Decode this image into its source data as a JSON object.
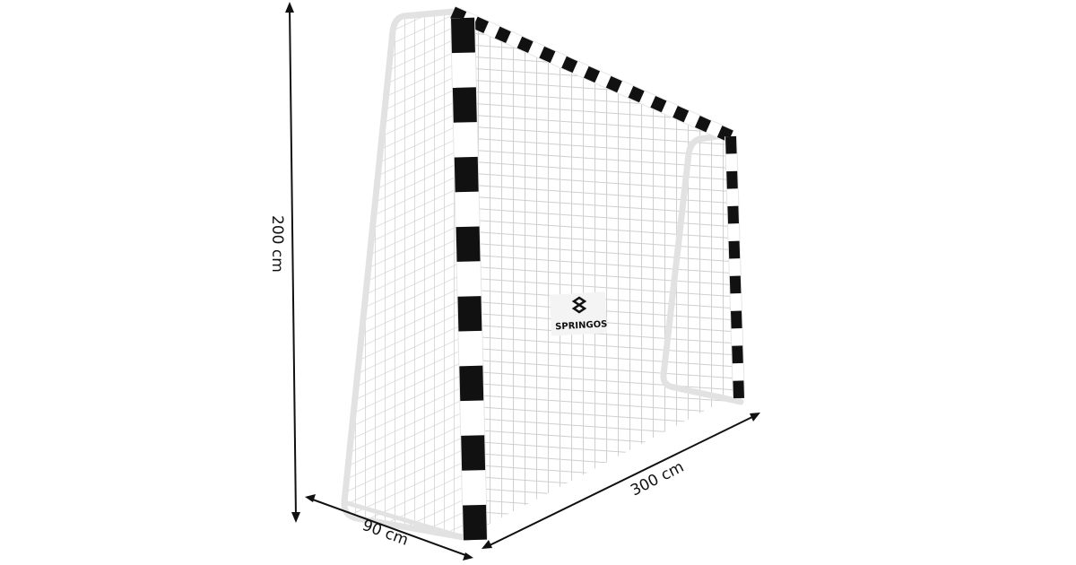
{
  "product": {
    "brand_logo": "SPRINGOS",
    "frame_colors": {
      "stripe": "#111111",
      "frame": "#ffffff",
      "net": "#d8d8d8"
    }
  },
  "dimensions": {
    "height": "200 cm",
    "depth": "90 cm",
    "width": "300 cm"
  }
}
